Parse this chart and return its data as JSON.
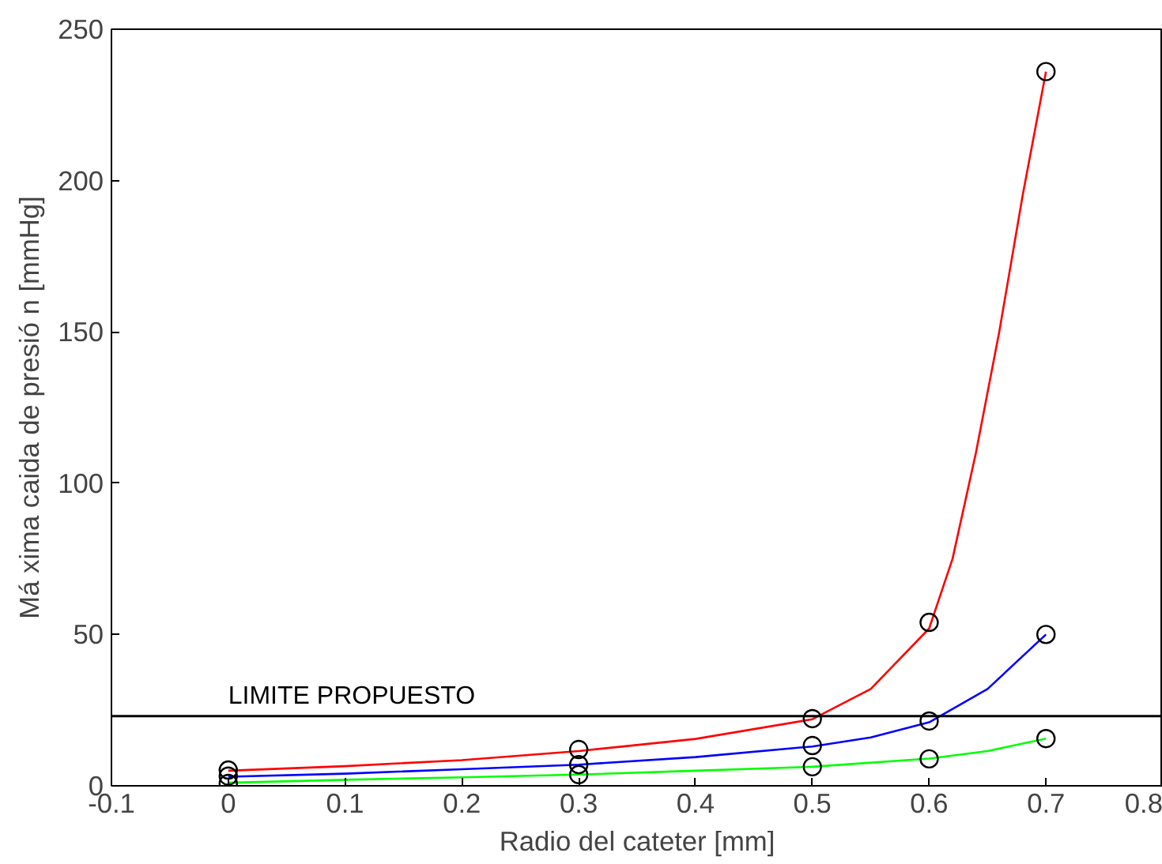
{
  "chart_data": {
    "type": "line",
    "xlabel": "Radio del cateter [mm]",
    "ylabel": "Má xima caida de presió n [mmHg]",
    "xlim": [
      -0.1,
      0.8
    ],
    "xticks": [
      {
        "value": -0.1,
        "label": "-0.1"
      },
      0,
      0.1,
      0.2,
      0.3,
      0.4,
      0.5,
      0.6,
      0.7,
      0.8
    ],
    "ylim": [
      0,
      250
    ],
    "yticks": [
      0,
      50,
      100,
      150,
      200,
      250
    ],
    "grid": false,
    "marker": "none",
    "line_style": "solid",
    "series": [
      {
        "color": "#ff0000",
        "x": [
          0,
          0.1,
          0.2,
          0.3,
          0.4,
          0.5,
          0.55,
          0.6,
          0.62,
          0.64,
          0.66,
          0.68,
          0.7
        ],
        "values": [
          5,
          6.5,
          8.5,
          11.5,
          15.5,
          22,
          32,
          52,
          75,
          110,
          150,
          195,
          236
        ]
      },
      {
        "color": "#0000ff",
        "x": [
          0,
          0.1,
          0.2,
          0.3,
          0.4,
          0.5,
          0.55,
          0.6,
          0.65,
          0.7
        ],
        "values": [
          3,
          4,
          5.5,
          7,
          9.5,
          13,
          16,
          21,
          32,
          50
        ]
      },
      {
        "color": "#00ff00",
        "x": [
          0,
          0.1,
          0.2,
          0.3,
          0.4,
          0.5,
          0.6,
          0.65,
          0.7
        ],
        "values": [
          1,
          2,
          2.8,
          3.7,
          5,
          6.3,
          9,
          11.5,
          15.6
        ]
      },
      {
        "type": "scatter",
        "color": "#000000",
        "marker": "circle",
        "x": [
          0,
          0,
          0,
          0.3,
          0.3,
          0.3,
          0.5,
          0.5,
          0.5,
          0.6,
          0.6,
          0.6,
          0.7,
          0.7,
          0.7
        ],
        "values": [
          5.2,
          3.2,
          0.8,
          12,
          7,
          3.7,
          22.2,
          13.3,
          6.3,
          54,
          21.4,
          8.9,
          236,
          50,
          15.6
        ]
      }
    ],
    "ref_lines": [
      {
        "axis": "y",
        "value": 23,
        "label": "LIMITE PROPUESTO",
        "color": "#000000"
      }
    ]
  }
}
